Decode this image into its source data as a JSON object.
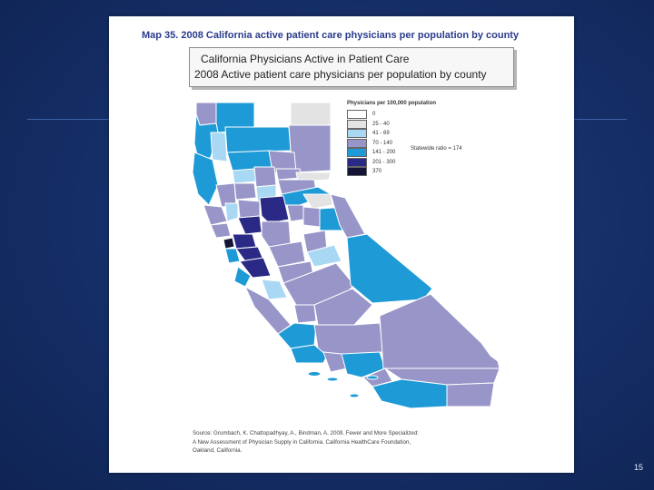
{
  "slide": {
    "number": "15"
  },
  "figure": {
    "caption": "Map 35. 2008 California active patient care physicians per population by county",
    "title_line1": "California Physicians Active in Patient Care",
    "title_line2": "2008 Active patient care physicians per population by county",
    "legend": {
      "title": "Physicians per 100,000 population",
      "items": [
        {
          "label": "0",
          "color": "#ffffff"
        },
        {
          "label": "25 - 40",
          "color": "#e3e3e3"
        },
        {
          "label": "41 - 69",
          "color": "#a8d8f4"
        },
        {
          "label": "70 - 140",
          "color": "#9896c8"
        },
        {
          "label": "141 - 200",
          "color": "#1e9ad6"
        },
        {
          "label": "201 - 300",
          "color": "#2a2a86"
        },
        {
          "label": "370",
          "color": "#141436"
        }
      ]
    },
    "statewide": "Statewide ratio = 174",
    "source_lines": [
      "Source: Grumbach, K. Chattopadhyay, A., Bindman, A. 2009. Fewer and More Specialized:",
      "A New Assessment of Physician Supply in California. California HealthCare Foundation,",
      "Oakland, California."
    ]
  },
  "colors": {
    "slide_bg": "#16306a",
    "zero": "#ffffff",
    "c25_40": "#e3e3e3",
    "c41_69": "#a8d8f4",
    "c70_140": "#9896c8",
    "c141_200": "#1e9ad6",
    "c201_300": "#2a2a86",
    "c370": "#141436"
  }
}
